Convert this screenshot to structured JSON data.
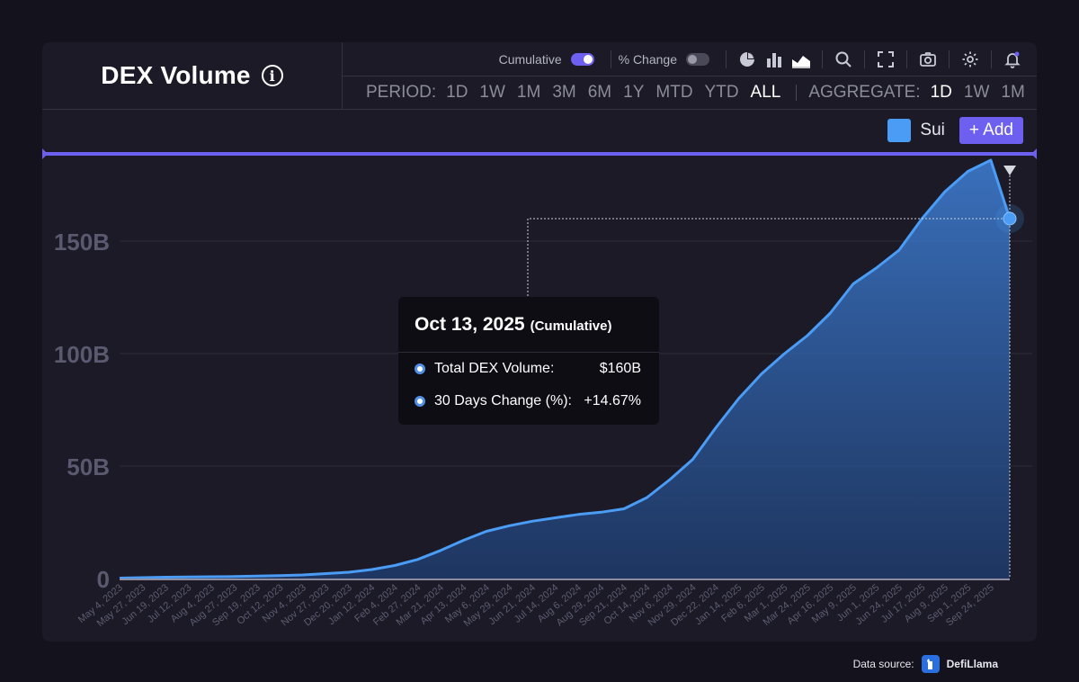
{
  "header": {
    "title": "DEX Volume",
    "info_icon": "info-icon",
    "toggles": [
      {
        "label": "Cumulative",
        "on": true
      },
      {
        "label": "% Change",
        "on": false
      }
    ],
    "icons": [
      "pie-chart-icon",
      "bar-chart-icon",
      "area-chart-icon",
      "search-icon",
      "fullscreen-icon",
      "camera-icon",
      "settings-icon",
      "bell-icon"
    ]
  },
  "period": {
    "label": "PERIOD:",
    "options": [
      "1D",
      "1W",
      "1M",
      "3M",
      "6M",
      "1Y",
      "MTD",
      "YTD",
      "ALL"
    ],
    "active": "ALL"
  },
  "aggregate": {
    "label": "AGGREGATE:",
    "options": [
      "1D",
      "1W",
      "1M"
    ],
    "active": "1D"
  },
  "legend": {
    "name": "Sui",
    "color": "#4a9cf5",
    "add_label": "+ Add"
  },
  "colors": {
    "accent": "#6d5ff0",
    "series": "#4a9cf5",
    "background": "#1b1a26"
  },
  "tooltip": {
    "date": "Oct 13, 2025",
    "subtitle": "(Cumulative)",
    "rows": [
      {
        "label": "Total DEX Volume:",
        "value": "$160B"
      },
      {
        "label": "30 Days Change (%):",
        "value": "+14.67%"
      }
    ]
  },
  "footer": {
    "source_label": "Data source:",
    "brand": "DefiLlama"
  },
  "chart_data": {
    "type": "area",
    "series": [
      {
        "name": "Sui",
        "color": "#4a9cf5"
      }
    ],
    "ylim": [
      0,
      180
    ],
    "yticks": [
      0,
      50,
      100,
      150
    ],
    "ytick_labels": [
      "0",
      "50B",
      "100B",
      "150B"
    ],
    "x_labels": [
      "May 4, 2023",
      "May 27, 2023",
      "Jun 19, 2023",
      "Jul 12, 2023",
      "Aug 4, 2023",
      "Aug 27, 2023",
      "Sep 19, 2023",
      "Oct 12, 2023",
      "Nov 4, 2023",
      "Nov 27, 2023",
      "Dec 20, 2023",
      "Jan 12, 2024",
      "Feb 4, 2024",
      "Feb 27, 2024",
      "Mar 21, 2024",
      "Apr 13, 2024",
      "May 6, 2024",
      "May 29, 2024",
      "Jun 21, 2024",
      "Jul 14, 2024",
      "Aug 6, 2024",
      "Aug 29, 2024",
      "Sep 21, 2024",
      "Oct 14, 2024",
      "Nov 6, 2024",
      "Nov 29, 2024",
      "Dec 22, 2024",
      "Jan 14, 2025",
      "Feb 6, 2025",
      "Mar 1, 2025",
      "Mar 24, 2025",
      "Apr 16, 2025",
      "May 9, 2025",
      "Jun 1, 2025",
      "Jun 24, 2025",
      "Jul 17, 2025",
      "Aug 9, 2025",
      "Sep 1, 2025",
      "Sep 24, 2025"
    ],
    "x": [
      "2023-05-04",
      "2023-05-27",
      "2023-06-19",
      "2023-07-12",
      "2023-08-04",
      "2023-08-27",
      "2023-09-19",
      "2023-10-12",
      "2023-11-04",
      "2023-11-27",
      "2023-12-20",
      "2024-01-12",
      "2024-02-04",
      "2024-02-27",
      "2024-03-21",
      "2024-04-13",
      "2024-05-06",
      "2024-05-29",
      "2024-06-21",
      "2024-07-14",
      "2024-08-06",
      "2024-08-29",
      "2024-09-21",
      "2024-10-14",
      "2024-11-06",
      "2024-11-29",
      "2024-12-22",
      "2025-01-14",
      "2025-02-06",
      "2025-03-01",
      "2025-03-24",
      "2025-04-16",
      "2025-05-09",
      "2025-06-01",
      "2025-06-24",
      "2025-07-17",
      "2025-08-09",
      "2025-09-01",
      "2025-09-24",
      "2025-10-13"
    ],
    "values": [
      0.2,
      0.4,
      0.6,
      0.7,
      0.8,
      0.9,
      1.1,
      1.3,
      1.6,
      2.2,
      2.8,
      4.0,
      5.8,
      8.5,
      12.5,
      17.0,
      21.0,
      23.5,
      25.5,
      27.0,
      28.5,
      29.5,
      31.0,
      36.0,
      44.0,
      53.0,
      67.0,
      80.0,
      91.0,
      100.0,
      108.0,
      118.0,
      131.0,
      138.0,
      146.0,
      160.0,
      172.0,
      181.0,
      186.0,
      160.0
    ],
    "y_unit": "B",
    "grid": true,
    "highlight": {
      "x": "2025-10-13",
      "y": 160
    }
  }
}
